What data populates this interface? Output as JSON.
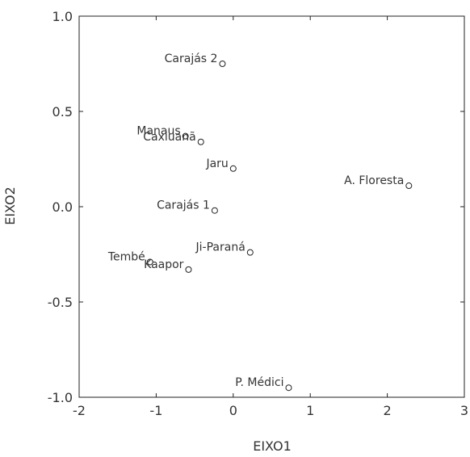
{
  "chart_data": {
    "type": "scatter",
    "title": "",
    "xlabel": "EIXO1",
    "ylabel": "EIXO2",
    "xlim": [
      -2,
      3
    ],
    "ylim": [
      -1.0,
      1.0
    ],
    "xticks": [
      -2,
      -1,
      0,
      1,
      2,
      3
    ],
    "xtick_labels": [
      "-2",
      "-1",
      "0",
      "1",
      "2",
      "3"
    ],
    "yticks": [
      -1.0,
      -0.5,
      0.0,
      0.5,
      1.0
    ],
    "ytick_labels": [
      "-1.0",
      "-0.5",
      "0.0",
      "0.5",
      "1.0"
    ],
    "grid": false,
    "points": [
      {
        "label": "Carajás 2",
        "x": -0.14,
        "y": 0.75
      },
      {
        "label": "Manaus",
        "x": -0.62,
        "y": 0.37
      },
      {
        "label": "Caxiuanã",
        "x": -0.42,
        "y": 0.34
      },
      {
        "label": "Jaru",
        "x": 0.0,
        "y": 0.2
      },
      {
        "label": "A. Floresta",
        "x": 2.28,
        "y": 0.11
      },
      {
        "label": "Carajás 1",
        "x": -0.24,
        "y": -0.02
      },
      {
        "label": "Ji-Paraná",
        "x": 0.22,
        "y": -0.24
      },
      {
        "label": "Tembé",
        "x": -1.08,
        "y": -0.29
      },
      {
        "label": "Kaapor",
        "x": -0.58,
        "y": -0.33
      },
      {
        "label": "P. Médici",
        "x": 0.72,
        "y": -0.95
      }
    ]
  }
}
